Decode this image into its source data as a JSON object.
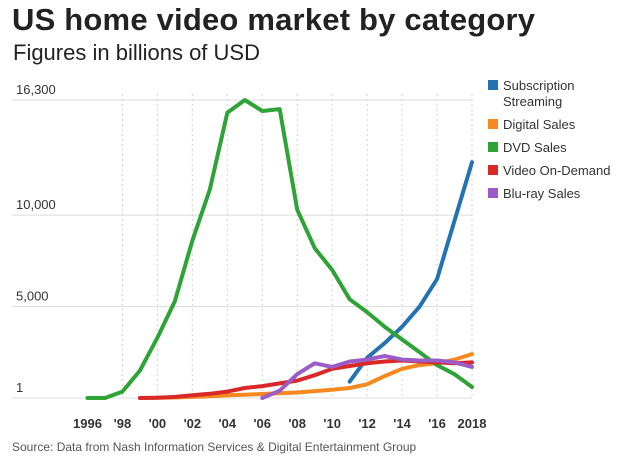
{
  "title": "US home video market by category",
  "subtitle": "Figures in billions of USD",
  "source": "Source: Data from Nash Information Services & Digital Entertainment Group",
  "chart_data": {
    "type": "line",
    "title": "US home video market by category",
    "subtitle": "Figures in billions of USD",
    "ylim": [
      1,
      16300
    ],
    "xlim": [
      1995,
      2018
    ],
    "ytick_labels": [
      {
        "value": 16300,
        "label": "16,300"
      },
      {
        "value": 10000,
        "label": "10,000"
      },
      {
        "value": 5000,
        "label": "5,000"
      },
      {
        "value": 1,
        "label": "1"
      }
    ],
    "xtick_labels": [
      {
        "value": 1996,
        "label": "1996"
      },
      {
        "value": 1998,
        "label": "'98"
      },
      {
        "value": 2000,
        "label": "'00"
      },
      {
        "value": 2002,
        "label": "'02"
      },
      {
        "value": 2004,
        "label": "'04"
      },
      {
        "value": 2006,
        "label": "'06"
      },
      {
        "value": 2008,
        "label": "'08"
      },
      {
        "value": 2010,
        "label": "'10"
      },
      {
        "value": 2012,
        "label": "'12"
      },
      {
        "value": 2014,
        "label": "'14"
      },
      {
        "value": 2016,
        "label": "'16"
      },
      {
        "value": 2018,
        "label": "2018"
      }
    ],
    "legend_position": "right",
    "series": [
      {
        "name": "Subscription Streaming",
        "legend_lines": [
          "Subscription",
          "Streaming"
        ],
        "color": "#2373b3",
        "x": [
          2011,
          2012,
          2013,
          2014,
          2015,
          2016,
          2017,
          2018
        ],
        "values": [
          900,
          2200,
          3000,
          3900,
          5000,
          6500,
          9700,
          12900
        ]
      },
      {
        "name": "Digital Sales",
        "legend_lines": [
          "Digital Sales"
        ],
        "color": "#f5891f",
        "x": [
          1999,
          2000,
          2001,
          2002,
          2003,
          2004,
          2005,
          2006,
          2007,
          2008,
          2009,
          2010,
          2011,
          2012,
          2013,
          2014,
          2015,
          2016,
          2017,
          2018
        ],
        "values": [
          1,
          10,
          30,
          60,
          100,
          150,
          180,
          220,
          260,
          300,
          380,
          450,
          550,
          750,
          1200,
          1600,
          1800,
          1900,
          2100,
          2400
        ]
      },
      {
        "name": "DVD Sales",
        "legend_lines": [
          "DVD Sales"
        ],
        "color": "#2ea336",
        "x": [
          1996,
          1997,
          1998,
          1999,
          2000,
          2001,
          2002,
          2003,
          2004,
          2005,
          2006,
          2007,
          2008,
          2009,
          2010,
          2011,
          2012,
          2013,
          2014,
          2015,
          2016,
          2017,
          2018
        ],
        "values": [
          1,
          1,
          350,
          1500,
          3300,
          5300,
          8600,
          11400,
          15600,
          16300,
          15700,
          15800,
          10300,
          8200,
          7000,
          5400,
          4700,
          3900,
          3200,
          2500,
          1800,
          1300,
          600
        ]
      },
      {
        "name": "Video On-Demand",
        "legend_lines": [
          "Video On-Demand"
        ],
        "color": "#d82828",
        "x": [
          1999,
          2000,
          2001,
          2002,
          2003,
          2004,
          2005,
          2006,
          2007,
          2008,
          2009,
          2010,
          2011,
          2012,
          2013,
          2014,
          2015,
          2016,
          2017,
          2018
        ],
        "values": [
          1,
          10,
          60,
          150,
          230,
          350,
          550,
          650,
          800,
          950,
          1250,
          1600,
          1750,
          1900,
          2000,
          2050,
          2000,
          1950,
          1900,
          1950
        ]
      },
      {
        "name": "Blu-ray Sales",
        "legend_lines": [
          "Blu-ray Sales"
        ],
        "color": "#9b5cc8",
        "x": [
          2006,
          2007,
          2008,
          2009,
          2010,
          2011,
          2012,
          2013,
          2014,
          2015,
          2016,
          2017,
          2018
        ],
        "values": [
          1,
          400,
          1300,
          1900,
          1700,
          2000,
          2100,
          2300,
          2100,
          2050,
          2050,
          1950,
          1700
        ]
      }
    ],
    "grid": "horizontal"
  }
}
